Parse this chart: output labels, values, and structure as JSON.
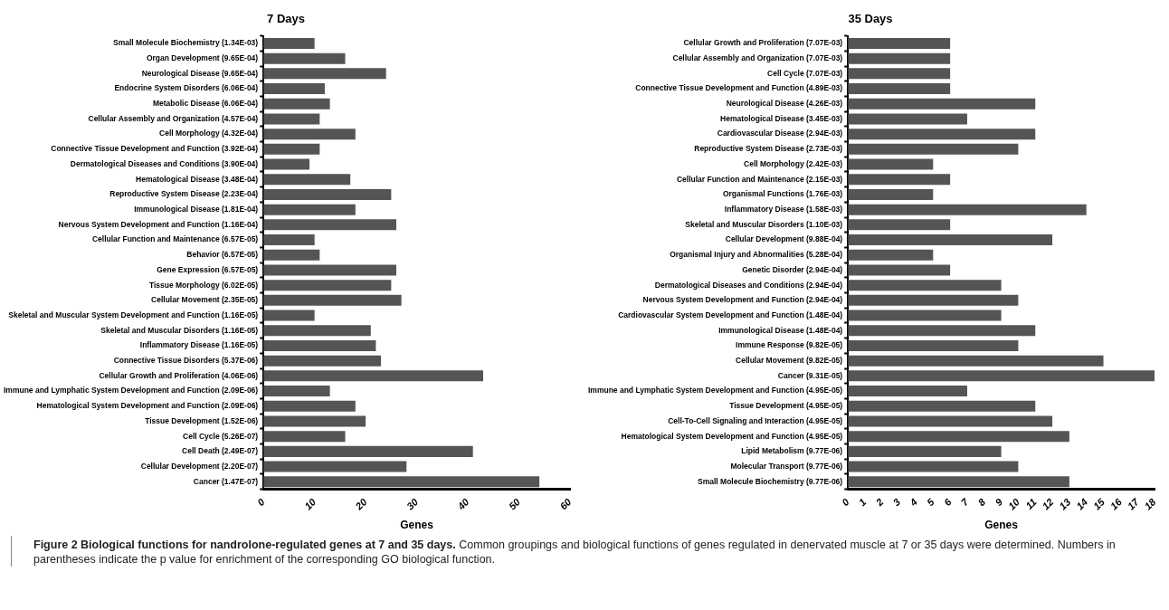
{
  "chart_data": [
    {
      "type": "bar",
      "orientation": "horizontal",
      "title": "7 Days",
      "xlabel": "Genes",
      "categories": [
        "Small Molecule Biochemistry (1.34E-03)",
        "Organ Development (9.65E-04)",
        "Neurological Disease (9.65E-04)",
        "Endocrine System Disorders (6.06E-04)",
        "Metabolic Disease (6.06E-04)",
        "Cellular Assembly and Organization (4.57E-04)",
        "Cell Morphology (4.32E-04)",
        "Connective Tissue Development and Function (3.92E-04)",
        "Dermatological Diseases and Conditions (3.90E-04)",
        "Hematological Disease (3.48E-04)",
        "Reproductive System Disease (2.23E-04)",
        "Immunological Disease (1.81E-04)",
        "Nervous System Development and Function (1.16E-04)",
        "Cellular Function and Maintenance (6.57E-05)",
        "Behavior (6.57E-05)",
        "Gene Expression (6.57E-05)",
        "Tissue Morphology (6.02E-05)",
        "Cellular Movement (2.35E-05)",
        "Skeletal and Muscular System Development and Function (1.16E-05)",
        "Skeletal and Muscular Disorders (1.16E-05)",
        "Inflammatory Disease (1.16E-05)",
        "Connective Tissue Disorders (5.37E-06)",
        "Cellular Growth and Proliferation (4.06E-06)",
        "Immune and Lymphatic System Development and Function (2.09E-06)",
        "Hematological System Development and Function (2.09E-06)",
        "Tissue Development (1.52E-06)",
        "Cell Cycle (5.26E-07)",
        "Cell Death (2.49E-07)",
        "Cellular Development (2.20E-07)",
        "Cancer (1.47E-07)"
      ],
      "values": [
        10,
        16,
        24,
        12,
        13,
        11,
        18,
        11,
        9,
        17,
        25,
        18,
        26,
        10,
        11,
        26,
        25,
        27,
        10,
        21,
        22,
        23,
        43,
        13,
        18,
        20,
        16,
        41,
        28,
        54
      ],
      "color": "#555555",
      "xlim": [
        0,
        60
      ],
      "xticks": [
        0,
        10,
        20,
        30,
        40,
        50,
        60
      ],
      "grid": false,
      "legend": false,
      "annotations": [
        "Figure 2 Biological functions for nandrolone-regulated genes at 7 and 35 days.",
        "Common groupings and biological functions of genes regulated in denervated muscle at 7 or 35 days were determined. Numbers in parentheses indicate the p value for enrichment of the corresponding GO biological function."
      ]
    },
    {
      "type": "bar",
      "orientation": "horizontal",
      "title": "35 Days",
      "xlabel": "Genes",
      "categories": [
        "Cellular Growth and Proliferation (7.07E-03)",
        "Cellular Assembly and Organization (7.07E-03)",
        "Cell Cycle (7.07E-03)",
        "Connective Tissue Development and Function (4.89E-03)",
        "Neurological Disease (4.26E-03)",
        "Hematological Disease (3.45E-03)",
        "Cardiovascular Disease (2.94E-03)",
        "Reproductive System Disease (2.73E-03)",
        "Cell Morphology (2.42E-03)",
        "Cellular Function and Maintenance (2.15E-03)",
        "Organismal Functions (1.76E-03)",
        "Inflammatory Disease (1.58E-03)",
        "Skeletal and Muscular Disorders (1.10E-03)",
        "Cellular Development (9.88E-04)",
        "Organismal Injury and Abnormalities (5.28E-04)",
        "Genetic Disorder (2.94E-04)",
        "Dermatological Diseases and Conditions (2.94E-04)",
        "Nervous System Development and Function (2.94E-04)",
        "Cardiovascular System Development and Function (1.48E-04)",
        "Immunological Disease (1.48E-04)",
        "Immune Response (9.82E-05)",
        "Cellular Movement (9.82E-05)",
        "Cancer (9.31E-05)",
        "Immune and Lymphatic System Development and Function (4.95E-05)",
        "Tissue Development (4.95E-05)",
        "Cell-To-Cell Signaling and Interaction (4.95E-05)",
        "Hematological System Development and Function (4.95E-05)",
        "Lipid Metabolism (9.77E-06)",
        "Molecular Transport (9.77E-06)",
        "Small Molecule Biochemistry (9.77E-06)"
      ],
      "values": [
        6,
        6,
        6,
        6,
        11,
        7,
        11,
        10,
        5,
        6,
        5,
        14,
        6,
        12,
        5,
        6,
        9,
        10,
        9,
        11,
        10,
        15,
        18,
        7,
        11,
        12,
        13,
        9,
        10,
        13
      ],
      "color": "#555555",
      "xlim": [
        0,
        18
      ],
      "xticks": [
        0,
        1,
        2,
        3,
        4,
        5,
        6,
        7,
        8,
        9,
        10,
        11,
        12,
        13,
        14,
        15,
        16,
        17,
        18
      ],
      "grid": false,
      "legend": false
    }
  ]
}
